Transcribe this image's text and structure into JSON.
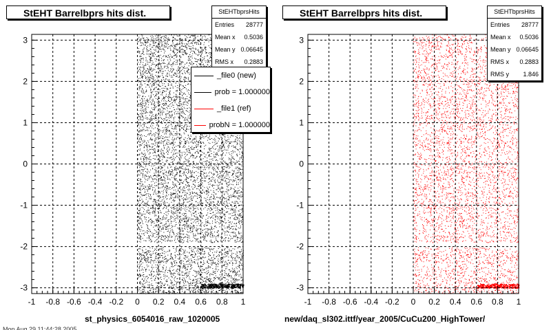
{
  "chart_data": [
    {
      "type": "scatter",
      "title": "StEHT Barrelbprs hits dist.",
      "xlabel": "st_physics_6054016_raw_1020005",
      "xlim": [
        -1,
        1
      ],
      "ylim": [
        -3.14,
        3.14
      ],
      "x_ticks": [
        -1,
        -0.8,
        -0.6,
        -0.4,
        -0.2,
        0,
        0.2,
        0.4,
        0.6,
        0.8,
        1
      ],
      "y_ticks": [
        -3,
        -2,
        -1,
        0,
        1,
        2,
        3
      ],
      "grid": true,
      "marker_color": "#000000",
      "stats": {
        "name": "StEHTbprsHits",
        "rows": [
          {
            "label": "Entries",
            "value": "28777"
          },
          {
            "label": "Mean x",
            "value": "0.5036"
          },
          {
            "label": "Mean y",
            "value": "0.06645"
          },
          {
            "label": "RMS x",
            "value": "0.2883"
          }
        ]
      },
      "legend": {
        "placement": "top-right",
        "entries": [
          {
            "label": "_file0 (new)",
            "color": "#000000"
          },
          {
            "label": "prob = 1.000000",
            "color": "#000000"
          },
          {
            "label": "_file1 (ref)",
            "color": "#ff0000"
          },
          {
            "label": "probN = 1.000000",
            "color": "#ff0000"
          }
        ]
      }
    },
    {
      "type": "scatter",
      "title": "StEHT Barrelbprs hits dist.",
      "xlabel": "new/daq_sl302.ittf/year_2005/CuCu200_HighTower/",
      "xlim": [
        -1,
        1
      ],
      "ylim": [
        -3.14,
        3.14
      ],
      "x_ticks": [
        -1,
        -0.8,
        -0.6,
        -0.4,
        -0.2,
        0,
        0.2,
        0.4,
        0.6,
        0.8,
        1
      ],
      "y_ticks": [
        -3,
        -2,
        -1,
        0,
        1,
        2,
        3
      ],
      "grid": true,
      "marker_color": "#ff0000",
      "stats": {
        "name": "StEHTbprsHits",
        "rows": [
          {
            "label": "Entries",
            "value": "28777"
          },
          {
            "label": "Mean x",
            "value": "0.5036"
          },
          {
            "label": "Mean y",
            "value": "0.06645"
          },
          {
            "label": "RMS x",
            "value": "0.2883"
          },
          {
            "label": "RMS y",
            "value": "1.846"
          }
        ]
      }
    }
  ],
  "footer_text": "Mon Aug 29 11:44:28 2005"
}
